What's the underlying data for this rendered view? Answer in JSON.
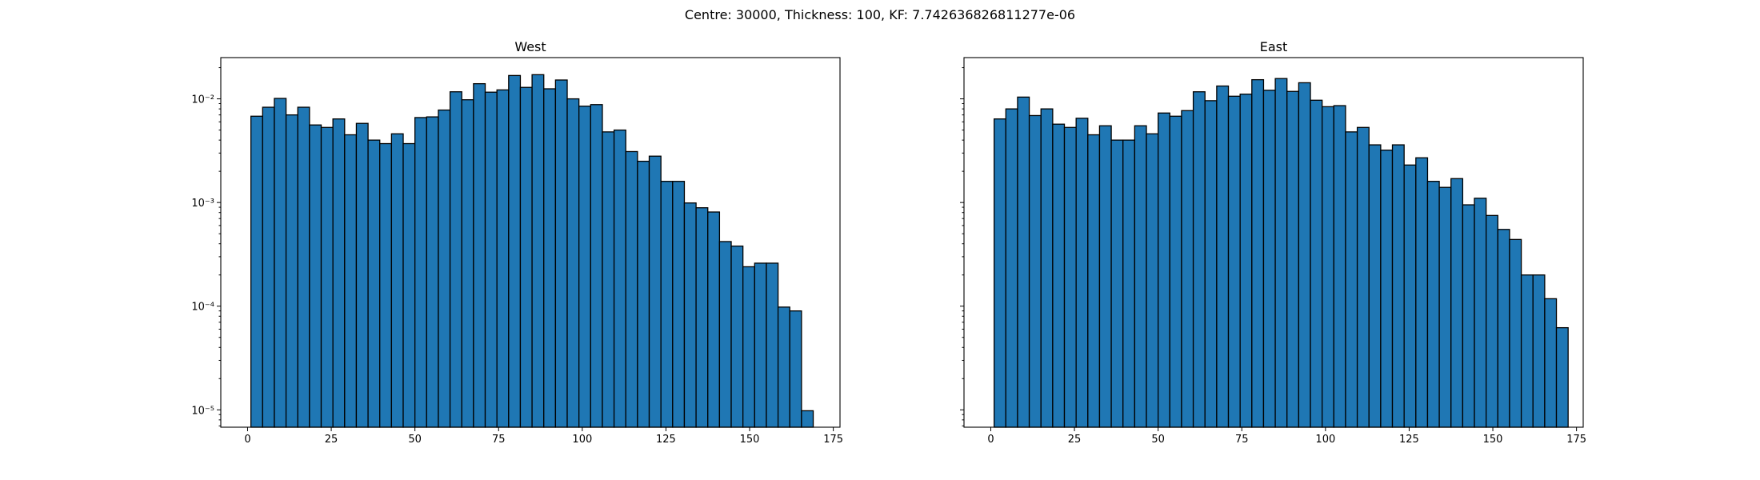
{
  "figure": {
    "suptitle": "Centre: 30000, Thickness: 100, KF: 7.742636826811277e-06"
  },
  "chart_data": [
    {
      "type": "bar",
      "title": "West",
      "xlabel": "",
      "ylabel": "",
      "yscale": "log",
      "xlim": [
        -8,
        177
      ],
      "ylim": [
        6.8e-06,
        0.025
      ],
      "x_ticks": [
        0,
        25,
        50,
        75,
        100,
        125,
        150,
        175
      ],
      "y_ticks": [
        {
          "value": 1e-05,
          "label": "10⁻⁵"
        },
        {
          "value": 0.0001,
          "label": "10⁻⁴"
        },
        {
          "value": 0.001,
          "label": "10⁻³"
        },
        {
          "value": 0.01,
          "label": "10⁻²"
        }
      ],
      "bin_start": 1,
      "bin_width": 3.5,
      "values": [
        0.0068,
        0.0083,
        0.0101,
        0.007,
        0.0083,
        0.0056,
        0.0053,
        0.0064,
        0.0045,
        0.0058,
        0.004,
        0.0037,
        0.0046,
        0.0037,
        0.0066,
        0.0067,
        0.0078,
        0.0117,
        0.0098,
        0.014,
        0.0116,
        0.0122,
        0.0168,
        0.0129,
        0.0171,
        0.0125,
        0.0152,
        0.01,
        0.0085,
        0.0088,
        0.0048,
        0.005,
        0.0031,
        0.0025,
        0.0028,
        0.0016,
        0.0016,
        0.00099,
        0.00089,
        0.00081,
        0.00042,
        0.00038,
        0.00024,
        0.00026,
        0.00026,
        9.8e-05,
        9e-05,
        9.8e-06
      ]
    },
    {
      "type": "bar",
      "title": "East",
      "xlabel": "",
      "ylabel": "",
      "yscale": "log",
      "xlim": [
        -8,
        177
      ],
      "ylim": [
        6.8e-06,
        0.025
      ],
      "x_ticks": [
        0,
        25,
        50,
        75,
        100,
        125,
        150,
        175
      ],
      "y_ticks": [
        {
          "value": 1e-05,
          "label": ""
        },
        {
          "value": 0.0001,
          "label": ""
        },
        {
          "value": 0.001,
          "label": ""
        },
        {
          "value": 0.01,
          "label": ""
        }
      ],
      "bin_start": 1,
      "bin_width": 3.5,
      "values": [
        0.0064,
        0.008,
        0.0104,
        0.0069,
        0.008,
        0.0057,
        0.0053,
        0.0065,
        0.0045,
        0.0055,
        0.004,
        0.004,
        0.0055,
        0.0046,
        0.0073,
        0.0068,
        0.0077,
        0.0117,
        0.0096,
        0.0133,
        0.0106,
        0.0111,
        0.0153,
        0.0121,
        0.0157,
        0.0118,
        0.0143,
        0.0097,
        0.0084,
        0.0086,
        0.0048,
        0.0053,
        0.0036,
        0.0032,
        0.0036,
        0.0023,
        0.0027,
        0.0016,
        0.0014,
        0.0017,
        0.00095,
        0.0011,
        0.00075,
        0.00055,
        0.00044,
        0.0002,
        0.0002,
        0.000118,
        6.2e-05
      ]
    }
  ]
}
